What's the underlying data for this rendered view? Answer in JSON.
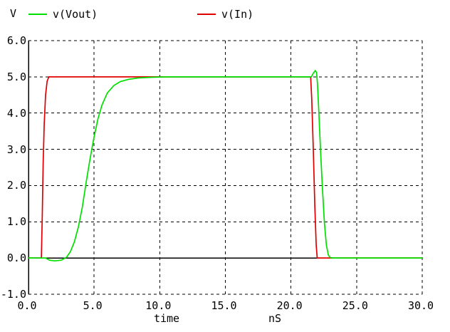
{
  "legend": {
    "axis_unit": "V",
    "series": [
      {
        "label": "v(Vout)",
        "color": "#00e000"
      },
      {
        "label": "v(In)",
        "color": "#e00000"
      }
    ]
  },
  "chart_data": {
    "type": "line",
    "title": "",
    "xlabel": "time",
    "x_unit": "nS",
    "ylabel": "V",
    "xlim": [
      0,
      30
    ],
    "ylim": [
      -1,
      6
    ],
    "x_ticks": [
      "0.0",
      "5.0",
      "10.0",
      "15.0",
      "20.0",
      "25.0",
      "30.0"
    ],
    "y_ticks": [
      "6.0",
      "5.0",
      "4.0",
      "3.0",
      "2.0",
      "1.0",
      "0.0",
      "-1.0"
    ],
    "grid": "dashed",
    "grid_color": "#000000",
    "zero_axis": "solid",
    "legend_position": "top",
    "series": [
      {
        "name": "v(In)",
        "color": "#e00000",
        "points": [
          [
            0,
            0
          ],
          [
            0.98,
            0
          ],
          [
            1.05,
            1.2
          ],
          [
            1.12,
            2.6
          ],
          [
            1.2,
            3.7
          ],
          [
            1.3,
            4.5
          ],
          [
            1.42,
            4.88
          ],
          [
            1.55,
            5.0
          ],
          [
            21.5,
            5.0
          ],
          [
            21.58,
            4.4
          ],
          [
            21.7,
            3.0
          ],
          [
            21.82,
            1.4
          ],
          [
            21.92,
            0.35
          ],
          [
            22.0,
            0
          ],
          [
            30,
            0
          ]
        ]
      },
      {
        "name": "v(Vout)",
        "color": "#00e000",
        "points": [
          [
            0,
            0
          ],
          [
            1.3,
            0
          ],
          [
            1.6,
            -0.06
          ],
          [
            2.0,
            -0.08
          ],
          [
            2.5,
            -0.06
          ],
          [
            2.9,
            0.02
          ],
          [
            3.2,
            0.18
          ],
          [
            3.5,
            0.45
          ],
          [
            3.8,
            0.85
          ],
          [
            4.1,
            1.4
          ],
          [
            4.4,
            2.1
          ],
          [
            4.7,
            2.75
          ],
          [
            5.0,
            3.35
          ],
          [
            5.3,
            3.85
          ],
          [
            5.6,
            4.22
          ],
          [
            6.0,
            4.55
          ],
          [
            6.5,
            4.76
          ],
          [
            7.0,
            4.87
          ],
          [
            7.6,
            4.93
          ],
          [
            8.4,
            4.97
          ],
          [
            9.5,
            4.99
          ],
          [
            10.5,
            5.0
          ],
          [
            21.55,
            5.0
          ],
          [
            21.7,
            5.1
          ],
          [
            21.85,
            5.17
          ],
          [
            21.95,
            5.12
          ],
          [
            22.02,
            4.8
          ],
          [
            22.1,
            4.2
          ],
          [
            22.25,
            3.0
          ],
          [
            22.4,
            1.9
          ],
          [
            22.55,
            0.95
          ],
          [
            22.7,
            0.35
          ],
          [
            22.85,
            0.08
          ],
          [
            23.0,
            0.01
          ],
          [
            23.2,
            0
          ],
          [
            30,
            0
          ]
        ]
      }
    ]
  }
}
